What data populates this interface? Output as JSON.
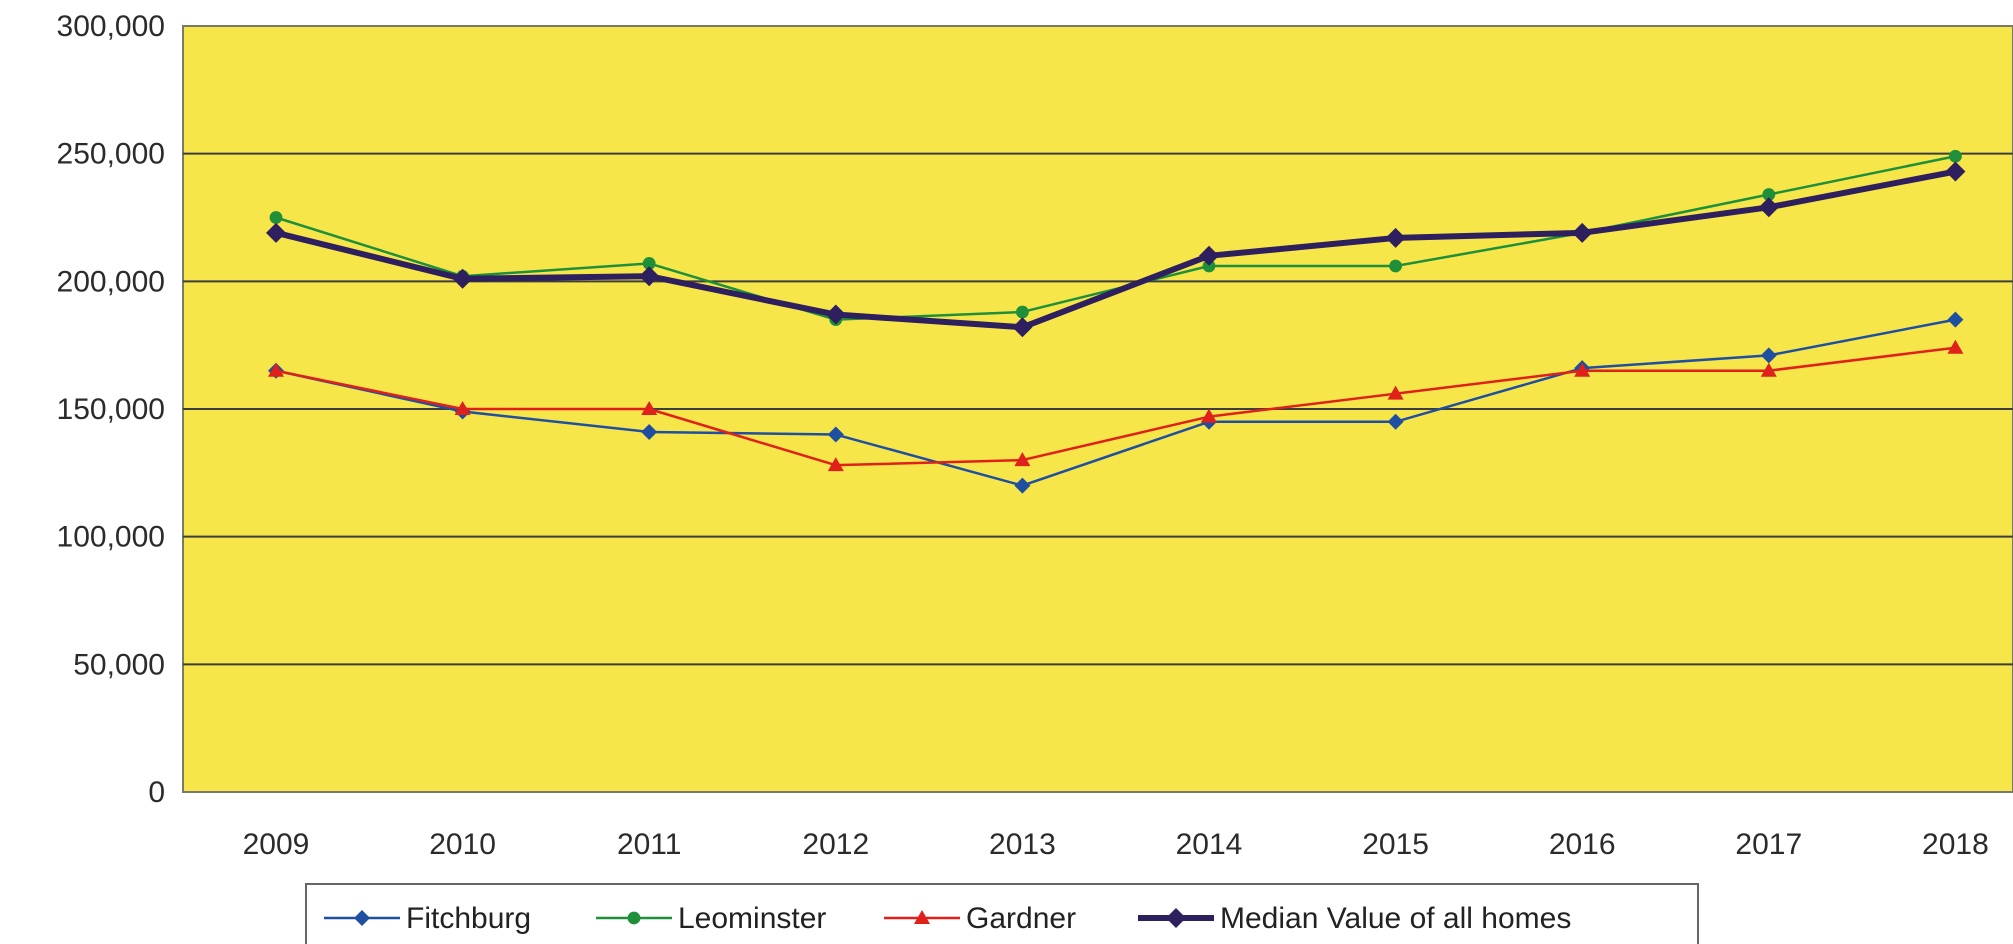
{
  "chart_data": {
    "type": "line",
    "title": "",
    "xlabel": "",
    "ylabel": "",
    "x": [
      "2009",
      "2010",
      "2011",
      "2012",
      "2013",
      "2014",
      "2015",
      "2016",
      "2017",
      "2018"
    ],
    "ylim": [
      0,
      300000
    ],
    "yticks": [
      0,
      50000,
      100000,
      150000,
      200000,
      250000,
      300000
    ],
    "ytick_labels": [
      "0",
      "50,000",
      "100,000",
      "150,000",
      "200,000",
      "250,000",
      "300,000"
    ],
    "grid": "horizontal",
    "legend_position": "bottom",
    "plot_background": "#f7e64a",
    "series": [
      {
        "name": "Fitchburg",
        "color": "#1f4fa0",
        "marker": "diamond",
        "values": [
          165000,
          149000,
          141000,
          140000,
          120000,
          145000,
          145000,
          166000,
          171000,
          185000
        ]
      },
      {
        "name": "Leominster",
        "color": "#1f8f3a",
        "marker": "circle",
        "values": [
          225000,
          202000,
          207000,
          185000,
          188000,
          206000,
          206000,
          219000,
          234000,
          249000
        ]
      },
      {
        "name": "Gardner",
        "color": "#e0201b",
        "marker": "triangle",
        "values": [
          165000,
          150000,
          150000,
          128000,
          130000,
          147000,
          156000,
          165000,
          165000,
          174000
        ]
      },
      {
        "name": "Median Value of all homes",
        "color": "#2e1f5e",
        "marker": "diamond",
        "values": [
          219000,
          201000,
          202000,
          187000,
          182000,
          210000,
          217000,
          219000,
          229000,
          243000
        ]
      }
    ]
  }
}
